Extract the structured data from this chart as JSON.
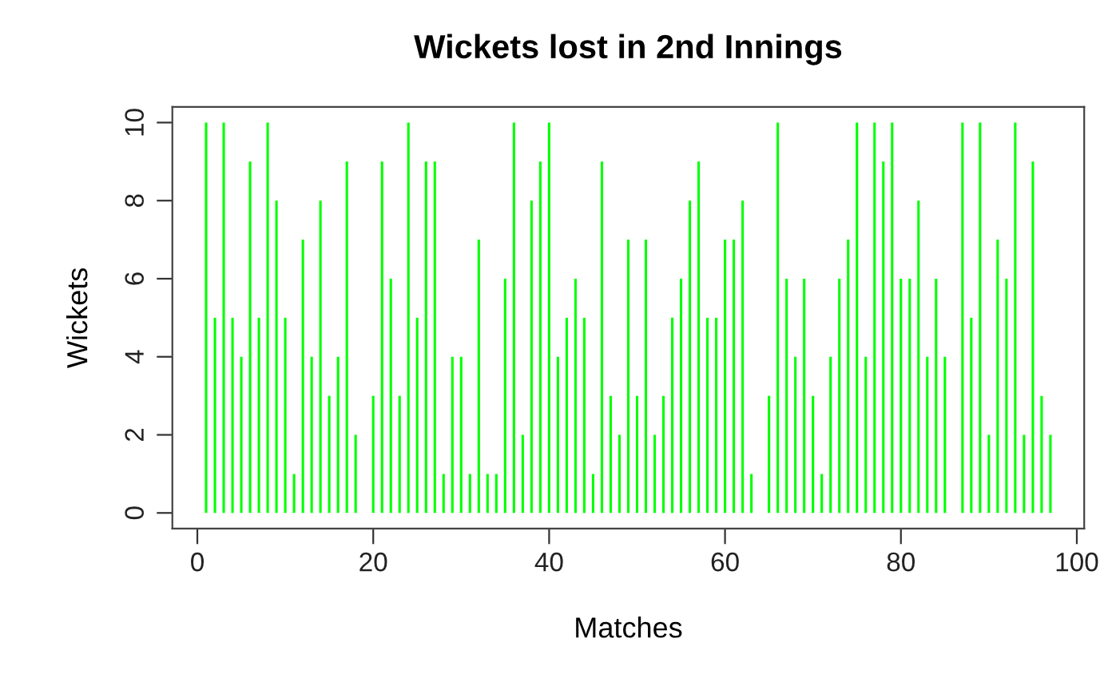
{
  "chart_data": {
    "type": "bar",
    "title": "Wickets lost in 2nd Innings",
    "xlabel": "Matches",
    "ylabel": "Wickets",
    "x": [
      1,
      2,
      3,
      4,
      5,
      6,
      7,
      8,
      9,
      10,
      11,
      12,
      13,
      14,
      15,
      16,
      17,
      18,
      19,
      20,
      21,
      22,
      23,
      24,
      25,
      26,
      27,
      28,
      29,
      30,
      31,
      32,
      33,
      34,
      35,
      36,
      37,
      38,
      39,
      40,
      41,
      42,
      43,
      44,
      45,
      46,
      47,
      48,
      49,
      50,
      51,
      52,
      53,
      54,
      55,
      56,
      57,
      58,
      59,
      60,
      61,
      62,
      63,
      64,
      65,
      66,
      67,
      68,
      69,
      70,
      71,
      72,
      73,
      74,
      75,
      76,
      77,
      78,
      79,
      80,
      81,
      82,
      83,
      84,
      85,
      86,
      87,
      88,
      89,
      90,
      91,
      92,
      93,
      94,
      95,
      96,
      97
    ],
    "values": [
      10,
      5,
      10,
      5,
      4,
      9,
      5,
      10,
      8,
      5,
      1,
      7,
      4,
      8,
      3,
      4,
      9,
      2,
      0,
      3,
      9,
      6,
      3,
      10,
      5,
      9,
      9,
      1,
      4,
      4,
      1,
      7,
      1,
      1,
      6,
      10,
      2,
      8,
      9,
      10,
      4,
      5,
      6,
      5,
      1,
      9,
      3,
      2,
      7,
      3,
      7,
      2,
      3,
      5,
      6,
      8,
      9,
      5,
      5,
      7,
      7,
      8,
      1,
      0,
      3,
      10,
      6,
      4,
      6,
      3,
      1,
      4,
      6,
      7,
      10,
      4,
      10,
      9,
      10,
      6,
      6,
      8,
      4,
      6,
      4,
      0,
      10,
      5,
      10,
      2,
      7,
      6,
      10,
      2,
      9,
      3,
      2
    ],
    "color": "#00ff00",
    "xlim": [
      -2.84,
      100.84
    ],
    "xticks": [
      0,
      20,
      40,
      60,
      80,
      100
    ],
    "ylim": [
      -0.4,
      10.4
    ],
    "yticks": [
      0,
      2,
      4,
      6,
      8,
      10
    ],
    "grid": false,
    "legend": false
  }
}
